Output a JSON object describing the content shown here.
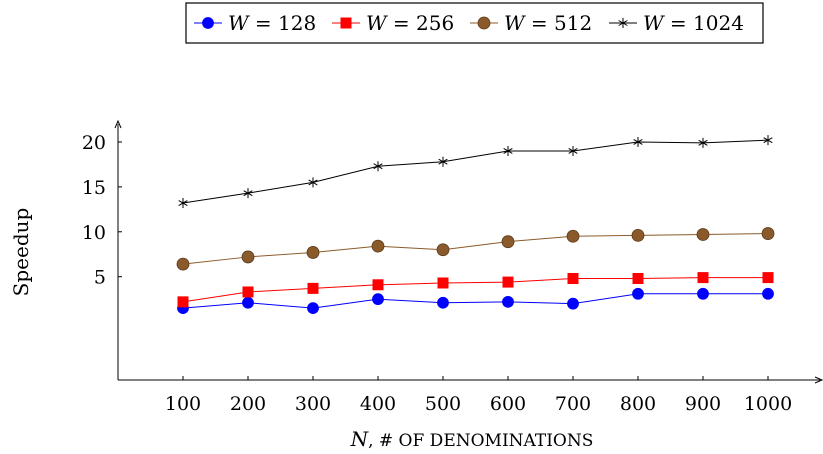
{
  "chart_data": {
    "type": "line",
    "title": "",
    "xlabel_var": "N",
    "xlabel_rest": ", # OF DENOMINATIONS",
    "ylabel": "Speedup",
    "x": [
      100,
      200,
      300,
      400,
      500,
      600,
      700,
      800,
      900,
      1000
    ],
    "xlim": [
      0,
      1080
    ],
    "ylim": [
      -6.5,
      22
    ],
    "yticks": [
      5,
      10,
      15,
      20
    ],
    "grid": false,
    "legend_position": "top",
    "series": [
      {
        "name_var": "W",
        "name_val": "= 128",
        "color": "#0000ff",
        "marker": "circle",
        "values": [
          1.5,
          2.1,
          1.5,
          2.5,
          2.1,
          2.2,
          2.0,
          3.1,
          3.1,
          3.1
        ]
      },
      {
        "name_var": "W",
        "name_val": "= 256",
        "color": "#ff0000",
        "marker": "square",
        "values": [
          2.2,
          3.3,
          3.7,
          4.1,
          4.3,
          4.4,
          4.8,
          4.8,
          4.9,
          4.9
        ]
      },
      {
        "name_var": "W",
        "name_val": "= 512",
        "color": "#8b5a2b",
        "marker": "circle",
        "values": [
          6.4,
          7.2,
          7.7,
          8.4,
          8.0,
          8.9,
          9.5,
          9.6,
          9.7,
          9.8
        ]
      },
      {
        "name_var": "W",
        "name_val": "= 1024",
        "color": "#000000",
        "marker": "star",
        "values": [
          13.2,
          14.3,
          15.5,
          17.3,
          17.8,
          19.0,
          19.0,
          20.0,
          19.9,
          20.2
        ]
      }
    ]
  }
}
